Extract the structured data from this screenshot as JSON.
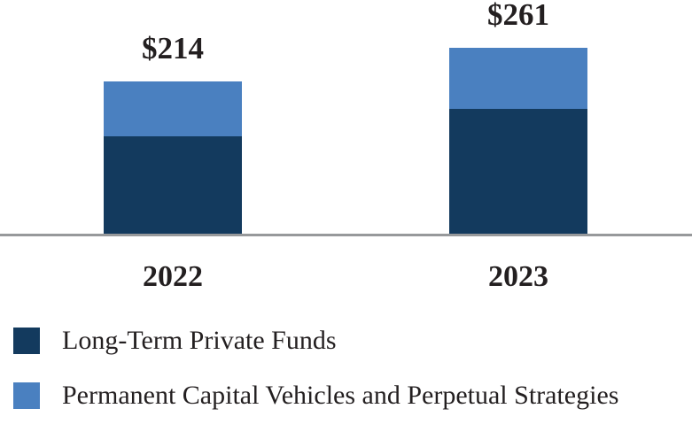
{
  "chart_data": {
    "type": "bar",
    "stacked": true,
    "categories": [
      "2022",
      "2023"
    ],
    "series": [
      {
        "name": "Long-Term Private Funds",
        "color": "#133A5E",
        "values": [
          137,
          176
        ]
      },
      {
        "name": "Permanent Capital Vehicles and Perpetual Strategies",
        "color": "#4A80C0",
        "values": [
          77,
          85
        ]
      }
    ],
    "totals": [
      214,
      261
    ],
    "total_labels": [
      "$214",
      "$261"
    ],
    "title": "",
    "xlabel": "",
    "ylabel": "",
    "ylim": [
      0,
      330
    ],
    "grid": false,
    "legend_position": "bottom-left",
    "axis_line_color": "#97999B",
    "text_color": "#231F20",
    "background_color": "#FFFFFF"
  }
}
